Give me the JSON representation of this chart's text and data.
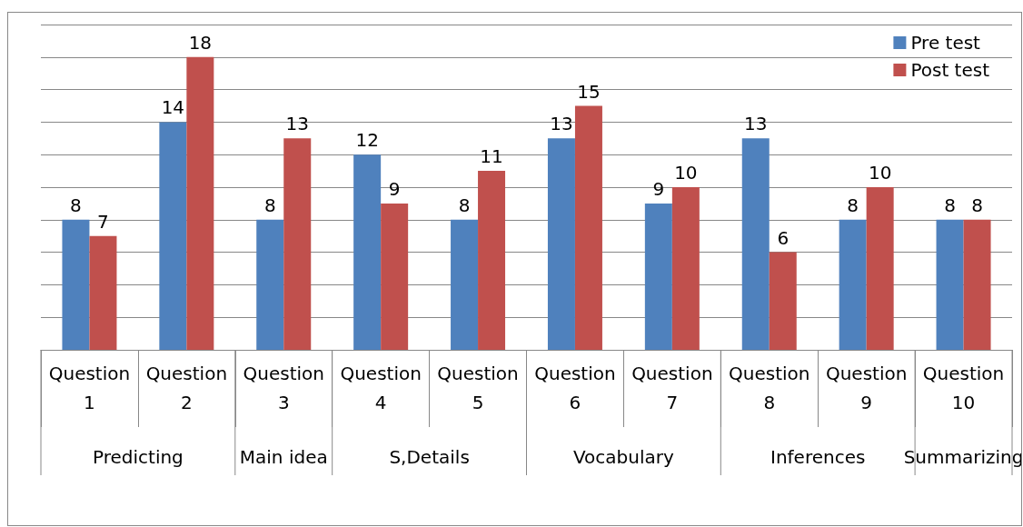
{
  "chart_data": {
    "type": "bar",
    "categories": [
      "Question 1",
      "Question 2",
      "Question 3",
      "Question 4",
      "Question 5",
      "Question 6",
      "Question 7",
      "Question 8",
      "Question 9",
      "Question 10"
    ],
    "series": [
      {
        "name": "Pre test",
        "color": "#4f81bd",
        "values": [
          8,
          14,
          8,
          12,
          8,
          13,
          9,
          13,
          8,
          8
        ]
      },
      {
        "name": "Post test",
        "color": "#c0504d",
        "values": [
          7,
          18,
          13,
          9,
          11,
          15,
          10,
          6,
          10,
          8
        ]
      }
    ],
    "ylim": [
      0,
      20
    ],
    "yticks": [
      {
        "value": 0,
        "label": null
      },
      {
        "value": 2,
        "label": null
      },
      {
        "value": 4,
        "label": null
      },
      {
        "value": 6,
        "label": null
      },
      {
        "value": 8,
        "label": null
      },
      {
        "value": 10,
        "label": null
      },
      {
        "value": 12,
        "label": null
      },
      {
        "value": 14,
        "label": null
      },
      {
        "value": 16,
        "label": null
      },
      {
        "value": 18,
        "label": null
      },
      {
        "value": 20,
        "label": null
      }
    ],
    "tick_labels": "x",
    "grid": "y",
    "legend": "top right",
    "data_labels": true,
    "annotations": [
      "Predicting",
      "Main idea",
      "S,Details",
      "Vocabulary",
      "Inferences",
      "Summarizing"
    ]
  }
}
